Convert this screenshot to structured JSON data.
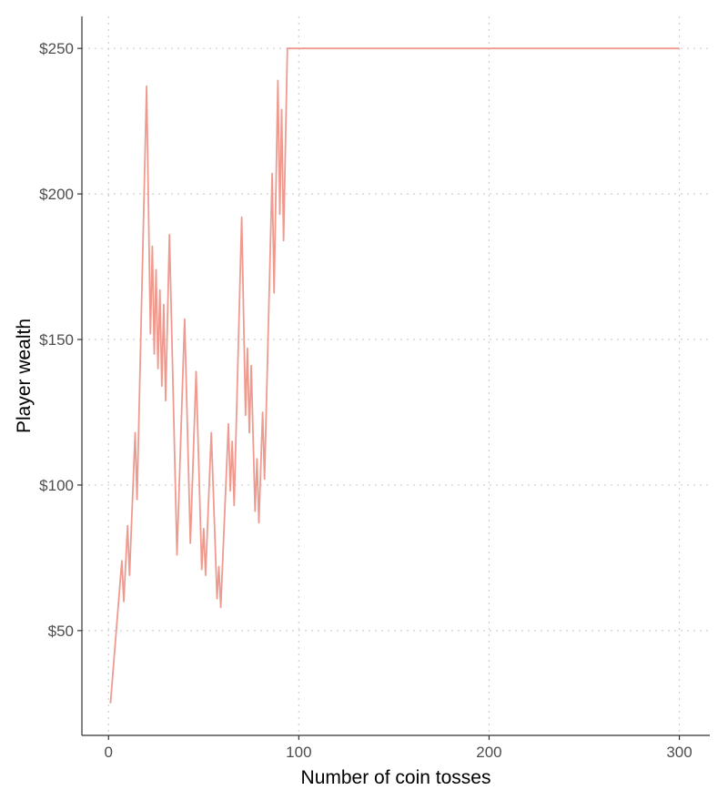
{
  "chart_data": {
    "type": "line",
    "title": "",
    "xlabel": "Number of coin tosses",
    "ylabel": "Player wealth",
    "xlim": [
      -14,
      316
    ],
    "ylim": [
      14,
      261
    ],
    "grid": true,
    "legend": "none",
    "x_ticks": [
      {
        "value": 0,
        "label": "0"
      },
      {
        "value": 100,
        "label": "100"
      },
      {
        "value": 200,
        "label": "200"
      },
      {
        "value": 300,
        "label": "300"
      }
    ],
    "y_ticks": [
      {
        "value": 50,
        "label": "$50"
      },
      {
        "value": 100,
        "label": "$100"
      },
      {
        "value": 150,
        "label": "$150"
      },
      {
        "value": 200,
        "label": "$200"
      },
      {
        "value": 250,
        "label": "$250"
      }
    ],
    "series": [
      {
        "color": "#ef9a8f",
        "points": [
          [
            1,
            25
          ],
          [
            7,
            74
          ],
          [
            8,
            60
          ],
          [
            10,
            86
          ],
          [
            11,
            69
          ],
          [
            14,
            118
          ],
          [
            15,
            95
          ],
          [
            20,
            237
          ],
          [
            22,
            152
          ],
          [
            23,
            182
          ],
          [
            24,
            145
          ],
          [
            25,
            174
          ],
          [
            26,
            140
          ],
          [
            27,
            167
          ],
          [
            28,
            134
          ],
          [
            29,
            162
          ],
          [
            30,
            129
          ],
          [
            32,
            186
          ],
          [
            36,
            76
          ],
          [
            40,
            157
          ],
          [
            43,
            80
          ],
          [
            46,
            139
          ],
          [
            49,
            71
          ],
          [
            50,
            85
          ],
          [
            51,
            69
          ],
          [
            54,
            118
          ],
          [
            57,
            61
          ],
          [
            58,
            72
          ],
          [
            59,
            58
          ],
          [
            63,
            121
          ],
          [
            64,
            98
          ],
          [
            65,
            115
          ],
          [
            66,
            93
          ],
          [
            70,
            192
          ],
          [
            72,
            124
          ],
          [
            73,
            147
          ],
          [
            74,
            118
          ],
          [
            75,
            141
          ],
          [
            77,
            91
          ],
          [
            78,
            109
          ],
          [
            79,
            87
          ],
          [
            81,
            125
          ],
          [
            82,
            102
          ],
          [
            86,
            207
          ],
          [
            87,
            166
          ],
          [
            89,
            239
          ],
          [
            90,
            193
          ],
          [
            91,
            229
          ],
          [
            92,
            184
          ],
          [
            94,
            250
          ],
          [
            300,
            250
          ]
        ]
      }
    ]
  }
}
